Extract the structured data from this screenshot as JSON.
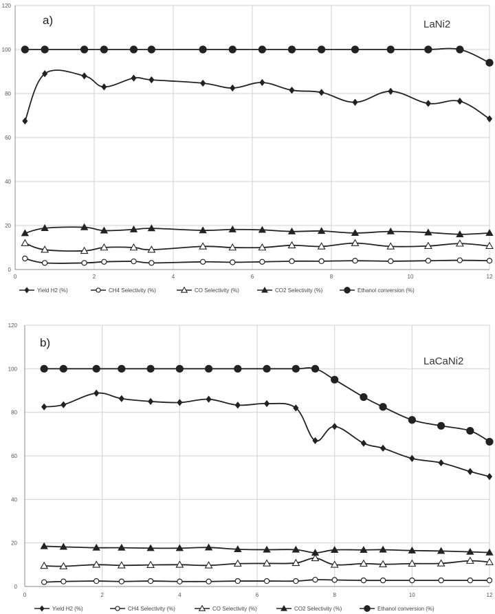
{
  "chart_data": [
    {
      "type": "line",
      "panel_label": "a)",
      "catalyst_label": "LaNi2",
      "xlim": [
        0,
        12
      ],
      "ylim": [
        0,
        120
      ],
      "x_ticks": [
        "0",
        "2",
        "4",
        "6",
        "8",
        "10",
        "12"
      ],
      "y_ticks": [
        "0",
        "20",
        "40",
        "60",
        "80",
        "100",
        "120"
      ],
      "grid": true,
      "legend_position": "bottom",
      "series": [
        {
          "name": "Yield H2 (%)",
          "marker": "diamond",
          "points": [
            [
              0.25,
              67.5
            ],
            [
              0.75,
              89
            ],
            [
              1.75,
              88
            ],
            [
              2.25,
              83
            ],
            [
              3,
              87
            ],
            [
              3.45,
              86.2
            ],
            [
              4.75,
              84.7
            ],
            [
              5.5,
              82.5
            ],
            [
              6.25,
              85
            ],
            [
              7,
              81.5
            ],
            [
              7.75,
              80.5
            ],
            [
              8.6,
              76
            ],
            [
              9.5,
              81
            ],
            [
              10.45,
              75.5
            ],
            [
              11.25,
              76.5
            ],
            [
              12,
              68.5
            ]
          ]
        },
        {
          "name": "CH4 Selectivity (%)",
          "marker": "circle-open",
          "points": [
            [
              0.25,
              5
            ],
            [
              0.75,
              3
            ],
            [
              1.75,
              3
            ],
            [
              2.25,
              3.5
            ],
            [
              3,
              3.7
            ],
            [
              3.45,
              3
            ],
            [
              4.75,
              3.5
            ],
            [
              5.5,
              3.3
            ],
            [
              6.25,
              3.5
            ],
            [
              7,
              3.8
            ],
            [
              7.75,
              3.8
            ],
            [
              8.6,
              4
            ],
            [
              9.5,
              3.8
            ],
            [
              10.45,
              4
            ],
            [
              11.25,
              4.2
            ],
            [
              12,
              4
            ]
          ]
        },
        {
          "name": "CO Selectivity (%)",
          "marker": "triangle-open",
          "points": [
            [
              0.25,
              12
            ],
            [
              0.75,
              9
            ],
            [
              1.75,
              8.5
            ],
            [
              2.25,
              10
            ],
            [
              3,
              10
            ],
            [
              3.45,
              9
            ],
            [
              4.75,
              10.5
            ],
            [
              5.5,
              10
            ],
            [
              6.25,
              10
            ],
            [
              7,
              11
            ],
            [
              7.75,
              10.5
            ],
            [
              8.6,
              12
            ],
            [
              9.5,
              10.5
            ],
            [
              10.45,
              10.7
            ],
            [
              11.25,
              11.8
            ],
            [
              12,
              10.7
            ]
          ]
        },
        {
          "name": "CO2 Selectivity (%)",
          "marker": "triangle",
          "points": [
            [
              0.25,
              16.5
            ],
            [
              0.75,
              18.8
            ],
            [
              1.75,
              19.2
            ],
            [
              2.25,
              17.7
            ],
            [
              3,
              18.2
            ],
            [
              3.45,
              18.7
            ],
            [
              4.75,
              17.8
            ],
            [
              5.5,
              18.2
            ],
            [
              6.25,
              18
            ],
            [
              7,
              17.3
            ],
            [
              7.75,
              17.5
            ],
            [
              8.6,
              16.6
            ],
            [
              9.5,
              17.3
            ],
            [
              10.45,
              16.8
            ],
            [
              11.25,
              16
            ],
            [
              12,
              16.6
            ]
          ]
        },
        {
          "name": "Ethanol conversion (%)",
          "marker": "circle",
          "points": [
            [
              0.25,
              100
            ],
            [
              0.75,
              100
            ],
            [
              1.75,
              100
            ],
            [
              2.25,
              100
            ],
            [
              3,
              100
            ],
            [
              3.45,
              100
            ],
            [
              4.75,
              100
            ],
            [
              5.5,
              100
            ],
            [
              6.25,
              100
            ],
            [
              7,
              100
            ],
            [
              7.75,
              100
            ],
            [
              8.6,
              100
            ],
            [
              9.5,
              100
            ],
            [
              10.45,
              100
            ],
            [
              11.25,
              100
            ],
            [
              12,
              94
            ]
          ]
        }
      ]
    },
    {
      "type": "line",
      "panel_label": "b)",
      "catalyst_label": "LaCaNi2",
      "xlim": [
        0,
        12
      ],
      "ylim": [
        0,
        120
      ],
      "x_ticks": [
        "0",
        "2",
        "4",
        "6",
        "8",
        "10",
        "12"
      ],
      "y_ticks": [
        "0",
        "20",
        "40",
        "60",
        "80",
        "100",
        "120"
      ],
      "grid": true,
      "legend_position": "bottom",
      "series": [
        {
          "name": "Yield H2 (%)",
          "marker": "diamond",
          "points": [
            [
              0.5,
              82.5
            ],
            [
              1,
              83.5
            ],
            [
              1.85,
              88.8
            ],
            [
              2.5,
              86.3
            ],
            [
              3.25,
              85
            ],
            [
              4,
              84.5
            ],
            [
              4.75,
              86
            ],
            [
              5.5,
              83.3
            ],
            [
              6.25,
              84
            ],
            [
              7,
              82
            ],
            [
              7.5,
              67
            ],
            [
              8,
              73.5
            ],
            [
              8.75,
              65.8
            ],
            [
              9.25,
              63.5
            ],
            [
              10,
              58.8
            ],
            [
              10.75,
              56.8
            ],
            [
              11.5,
              52.8
            ],
            [
              12,
              50.5
            ]
          ]
        },
        {
          "name": "CH4 Selectivity (%)",
          "marker": "circle-open",
          "points": [
            [
              0.5,
              2
            ],
            [
              1,
              2.3
            ],
            [
              1.85,
              2.5
            ],
            [
              2.5,
              2.3
            ],
            [
              3.25,
              2.5
            ],
            [
              4,
              2.3
            ],
            [
              4.75,
              2.3
            ],
            [
              5.5,
              2.5
            ],
            [
              6.25,
              2.5
            ],
            [
              7,
              2.5
            ],
            [
              7.5,
              3.1
            ],
            [
              8,
              3
            ],
            [
              8.75,
              2.8
            ],
            [
              9.25,
              2.8
            ],
            [
              10,
              2.8
            ],
            [
              10.75,
              2.8
            ],
            [
              11.5,
              2.8
            ],
            [
              12,
              2.8
            ]
          ]
        },
        {
          "name": "CO Selectivity (%)",
          "marker": "triangle-open",
          "points": [
            [
              0.5,
              9.5
            ],
            [
              1,
              9.3
            ],
            [
              1.85,
              10
            ],
            [
              2.5,
              9.7
            ],
            [
              3.25,
              9.9
            ],
            [
              4,
              10
            ],
            [
              4.75,
              9.7
            ],
            [
              5.5,
              10.5
            ],
            [
              6.25,
              10.6
            ],
            [
              7,
              10.8
            ],
            [
              7.5,
              13
            ],
            [
              8,
              10
            ],
            [
              8.75,
              10.5
            ],
            [
              9.25,
              10.2
            ],
            [
              10,
              10.5
            ],
            [
              10.75,
              10.6
            ],
            [
              11.5,
              11.8
            ],
            [
              12,
              11.2
            ]
          ]
        },
        {
          "name": "CO2 Selectivity (%)",
          "marker": "triangle",
          "points": [
            [
              0.5,
              18.5
            ],
            [
              1,
              18.2
            ],
            [
              1.85,
              17.8
            ],
            [
              2.5,
              17.8
            ],
            [
              3.25,
              17.6
            ],
            [
              4,
              17.6
            ],
            [
              4.75,
              17.9
            ],
            [
              5.5,
              17.1
            ],
            [
              6.25,
              16.9
            ],
            [
              7,
              16.9
            ],
            [
              7.5,
              15.5
            ],
            [
              8,
              16.8
            ],
            [
              8.75,
              16.8
            ],
            [
              9.25,
              16.9
            ],
            [
              10,
              16.5
            ],
            [
              10.75,
              16.3
            ],
            [
              11.5,
              15.9
            ],
            [
              12,
              15.6
            ]
          ]
        },
        {
          "name": "Ethanol conversion (%)",
          "marker": "circle",
          "points": [
            [
              0.5,
              100
            ],
            [
              1,
              100
            ],
            [
              1.85,
              100
            ],
            [
              2.5,
              100
            ],
            [
              3.25,
              100
            ],
            [
              4,
              100
            ],
            [
              4.75,
              100
            ],
            [
              5.5,
              100
            ],
            [
              6.25,
              100
            ],
            [
              7,
              100
            ],
            [
              7.5,
              100
            ],
            [
              8,
              95
            ],
            [
              8.75,
              87
            ],
            [
              9.25,
              82.5
            ],
            [
              10,
              76.5
            ],
            [
              10.75,
              73.8
            ],
            [
              11.5,
              71.5
            ],
            [
              12,
              66.5
            ]
          ]
        }
      ]
    }
  ]
}
